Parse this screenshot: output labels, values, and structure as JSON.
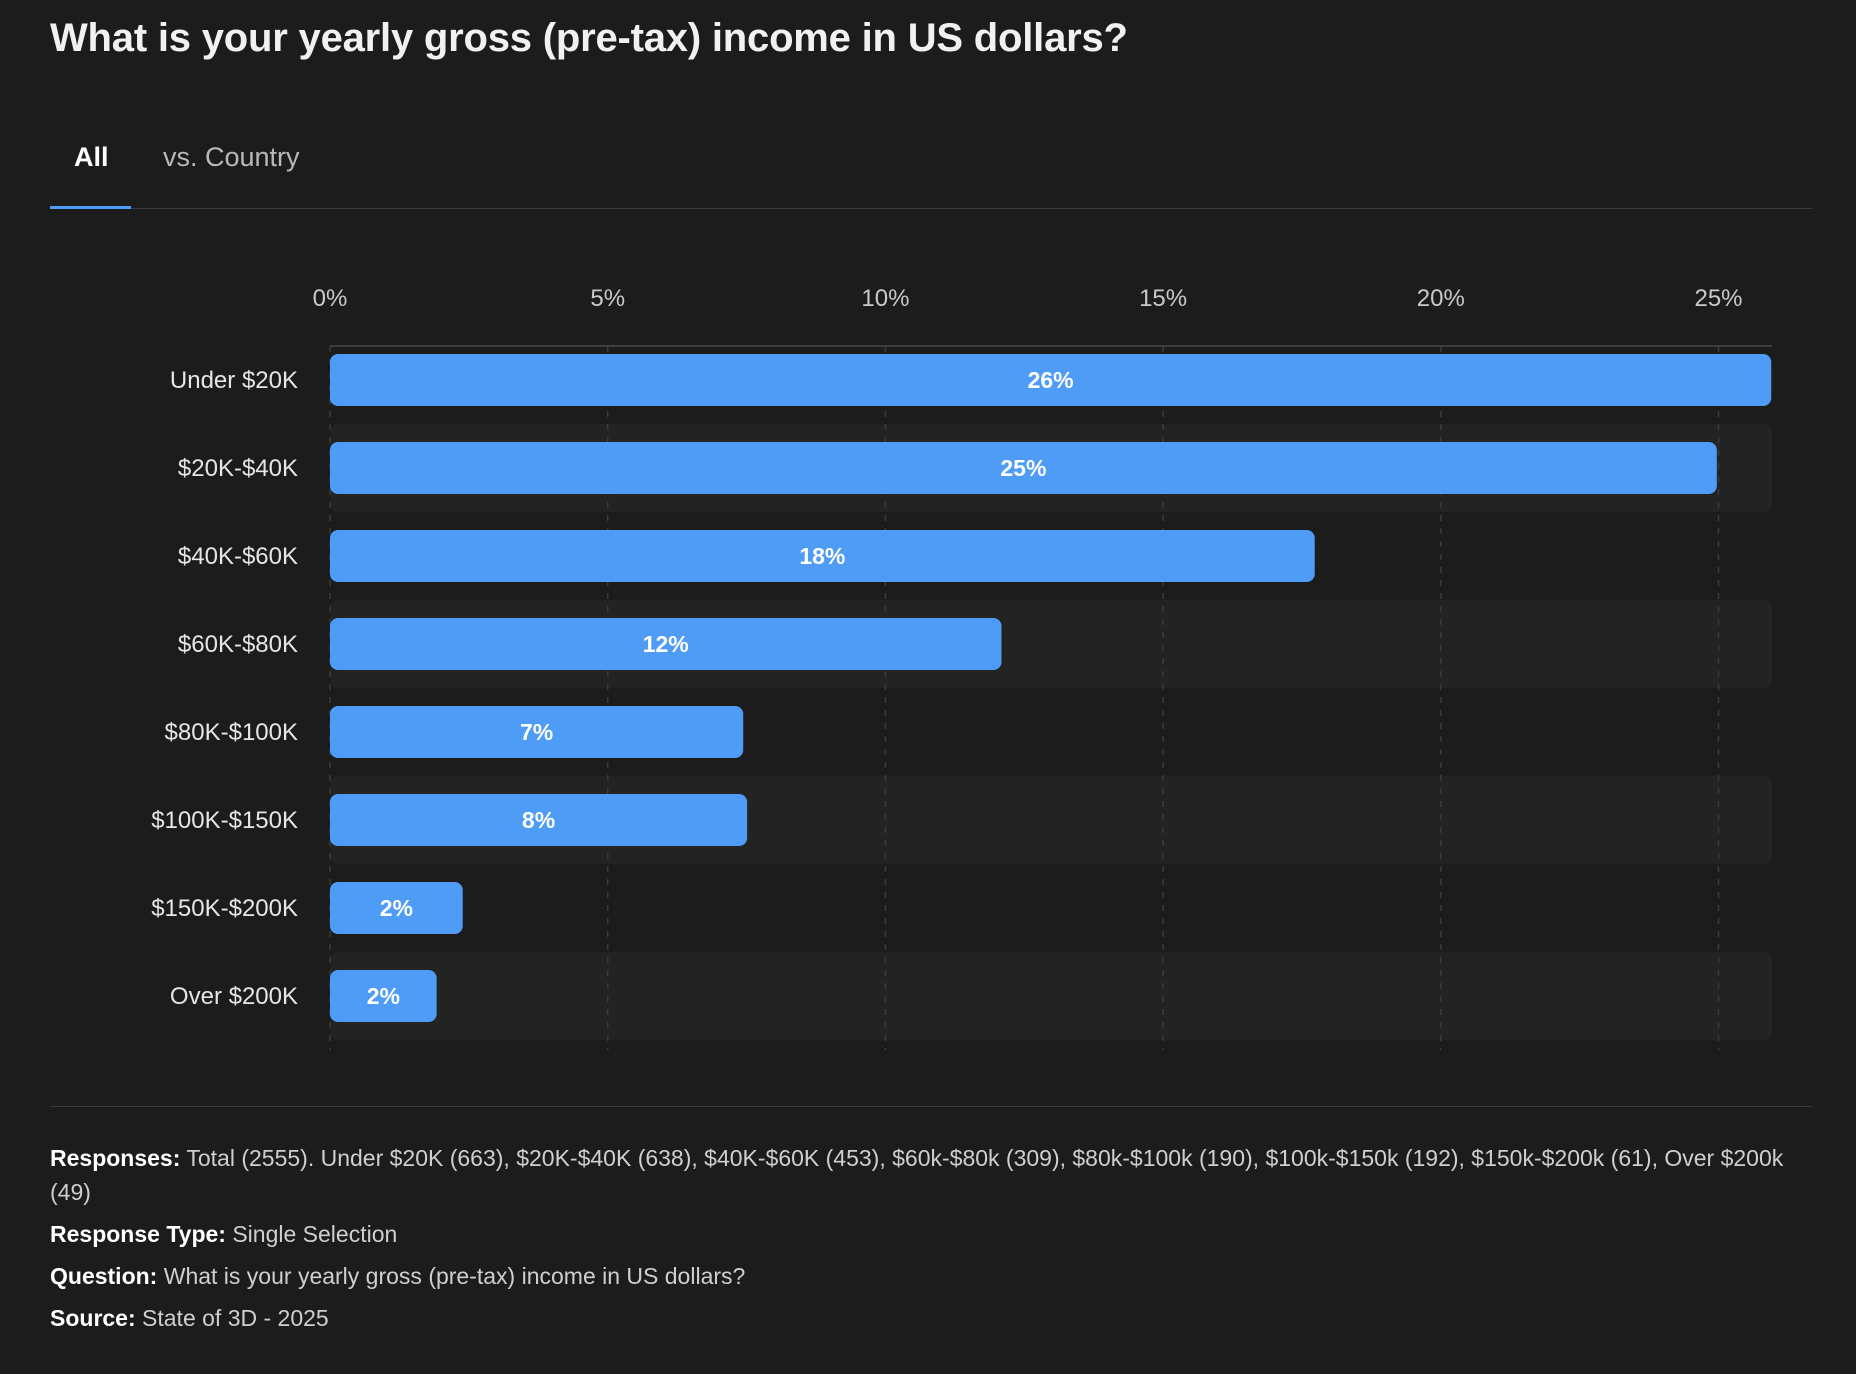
{
  "page": {
    "title": "What is your yearly gross (pre-tax) income in US dollars?",
    "tabs": [
      {
        "label": "All",
        "active": true
      },
      {
        "label": "vs. Country",
        "active": false
      }
    ]
  },
  "chart_data": {
    "type": "bar",
    "orientation": "horizontal",
    "title": "What is your yearly gross (pre-tax) income in US dollars?",
    "categories": [
      "Under $20K",
      "$20K-$40K",
      "$40K-$60K",
      "$60K-$80K",
      "$80K-$100K",
      "$100K-$150K",
      "$150K-$200K",
      "Over $200K"
    ],
    "values": [
      26,
      25,
      18,
      12,
      7,
      8,
      2,
      2
    ],
    "plotted_values": [
      25.95,
      24.97,
      17.73,
      12.09,
      7.44,
      7.51,
      2.39,
      1.92
    ],
    "value_labels": [
      "26%",
      "25%",
      "18%",
      "12%",
      "7%",
      "8%",
      "2%",
      "2%"
    ],
    "ticks": [
      0,
      5,
      10,
      15,
      20,
      25
    ],
    "tick_labels": [
      "0%",
      "5%",
      "10%",
      "15%",
      "20%",
      "25%"
    ],
    "xlim": [
      0,
      26
    ],
    "xlabel": "",
    "ylabel": "",
    "grid": true,
    "bar_color": "#4f9cf7"
  },
  "footer": {
    "responses_key": "Responses:",
    "responses_value": "Total (2555). Under $20K (663), $20K-$40K (638), $40K-$60K (453), $60k-$80k (309), $80k-$100k (190), $100k-$150k (192), $150k-$200k (61), Over $200k (49)",
    "response_type_key": "Response Type:",
    "response_type_value": "Single Selection",
    "question_key": "Question:",
    "question_value": "What is your yearly gross (pre-tax) income in US dollars?",
    "source_key": "Source:",
    "source_value": "State of 3D - 2025"
  }
}
